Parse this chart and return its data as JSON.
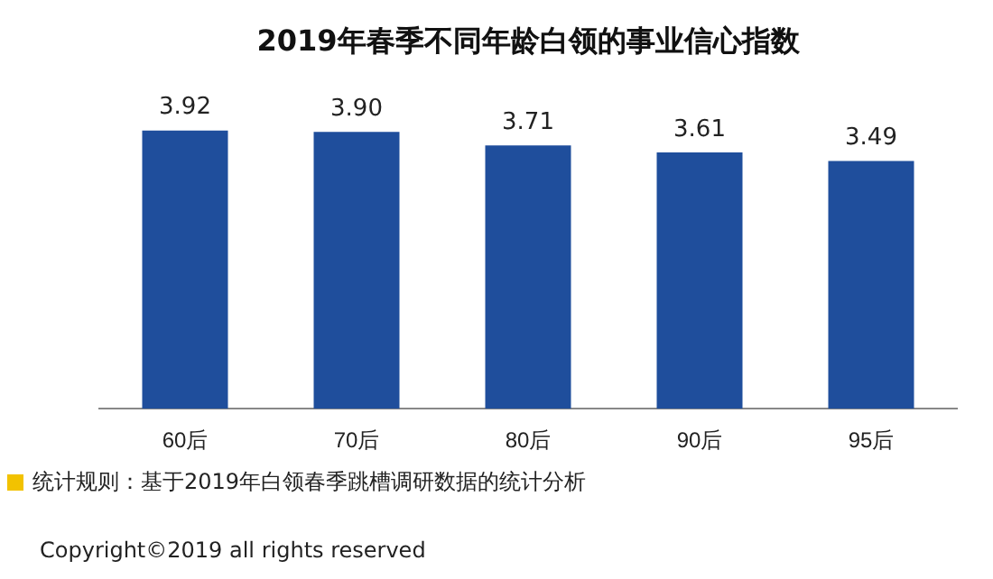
{
  "chart_data": {
    "type": "bar",
    "title": "2019年春季不同年龄白领的事业信心指数",
    "categories": [
      "60后",
      "70后",
      "80后",
      "90后",
      "95后"
    ],
    "values": [
      3.92,
      3.9,
      3.71,
      3.61,
      3.49
    ],
    "value_labels": [
      "3.92",
      "3.90",
      "3.71",
      "3.61",
      "3.49"
    ],
    "color": "#1f4e9c",
    "data_labels": false,
    "grid": false,
    "legend": false,
    "tick_labels": "x",
    "annotations": [
      "统计规则：基于2019年白领春季跳槽调研数据的统计分析",
      "Copyright©2019 all rights reserved"
    ]
  }
}
